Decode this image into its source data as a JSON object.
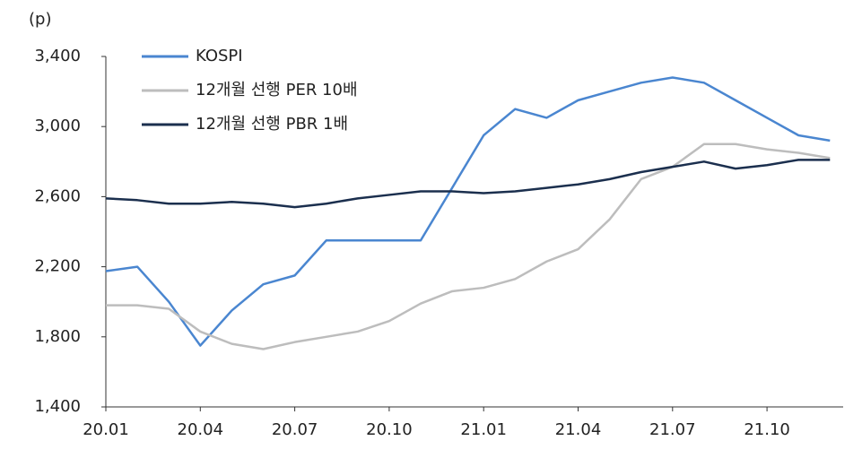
{
  "chart_data": {
    "type": "line",
    "y_unit": "(p)",
    "x": [
      "20.01",
      null,
      null,
      "20.04",
      null,
      null,
      "20.07",
      null,
      null,
      "20.10",
      null,
      null,
      "21.01",
      null,
      null,
      "21.04",
      null,
      null,
      "21.07",
      null,
      null,
      "21.10",
      null,
      null
    ],
    "series": [
      {
        "name": "KOSPI",
        "color": "#4a86d0",
        "values": [
          2175,
          2200,
          2000,
          1750,
          1950,
          2100,
          2150,
          2350,
          2350,
          2350,
          2350,
          2650,
          2950,
          3100,
          3050,
          3150,
          3200,
          3250,
          3280,
          3250,
          3150,
          3050,
          2950,
          2920
        ]
      },
      {
        "name": "12개월 선행 PER 10배",
        "color": "#bdbdbd",
        "values": [
          1980,
          1980,
          1960,
          1830,
          1760,
          1730,
          1770,
          1800,
          1830,
          1890,
          1990,
          2060,
          2080,
          2130,
          2230,
          2300,
          2470,
          2700,
          2770,
          2900,
          2900,
          2870,
          2850,
          2820
        ]
      },
      {
        "name": "12개월 선행 PBR 1배",
        "color": "#1b2f4e",
        "values": [
          2590,
          2580,
          2560,
          2560,
          2570,
          2560,
          2540,
          2560,
          2590,
          2610,
          2630,
          2630,
          2620,
          2630,
          2650,
          2670,
          2700,
          2740,
          2770,
          2800,
          2760,
          2780,
          2810,
          2810
        ]
      }
    ],
    "ylim": [
      1400,
      3400
    ],
    "yticks": [
      {
        "value": 1400,
        "label": "1,400"
      },
      {
        "value": 1800,
        "label": "1,800"
      },
      {
        "value": 2200,
        "label": "2,200"
      },
      {
        "value": 2600,
        "label": "2,600"
      },
      {
        "value": 3000,
        "label": "3,000"
      },
      {
        "value": 3400,
        "label": "3,400"
      }
    ],
    "grid": false
  }
}
